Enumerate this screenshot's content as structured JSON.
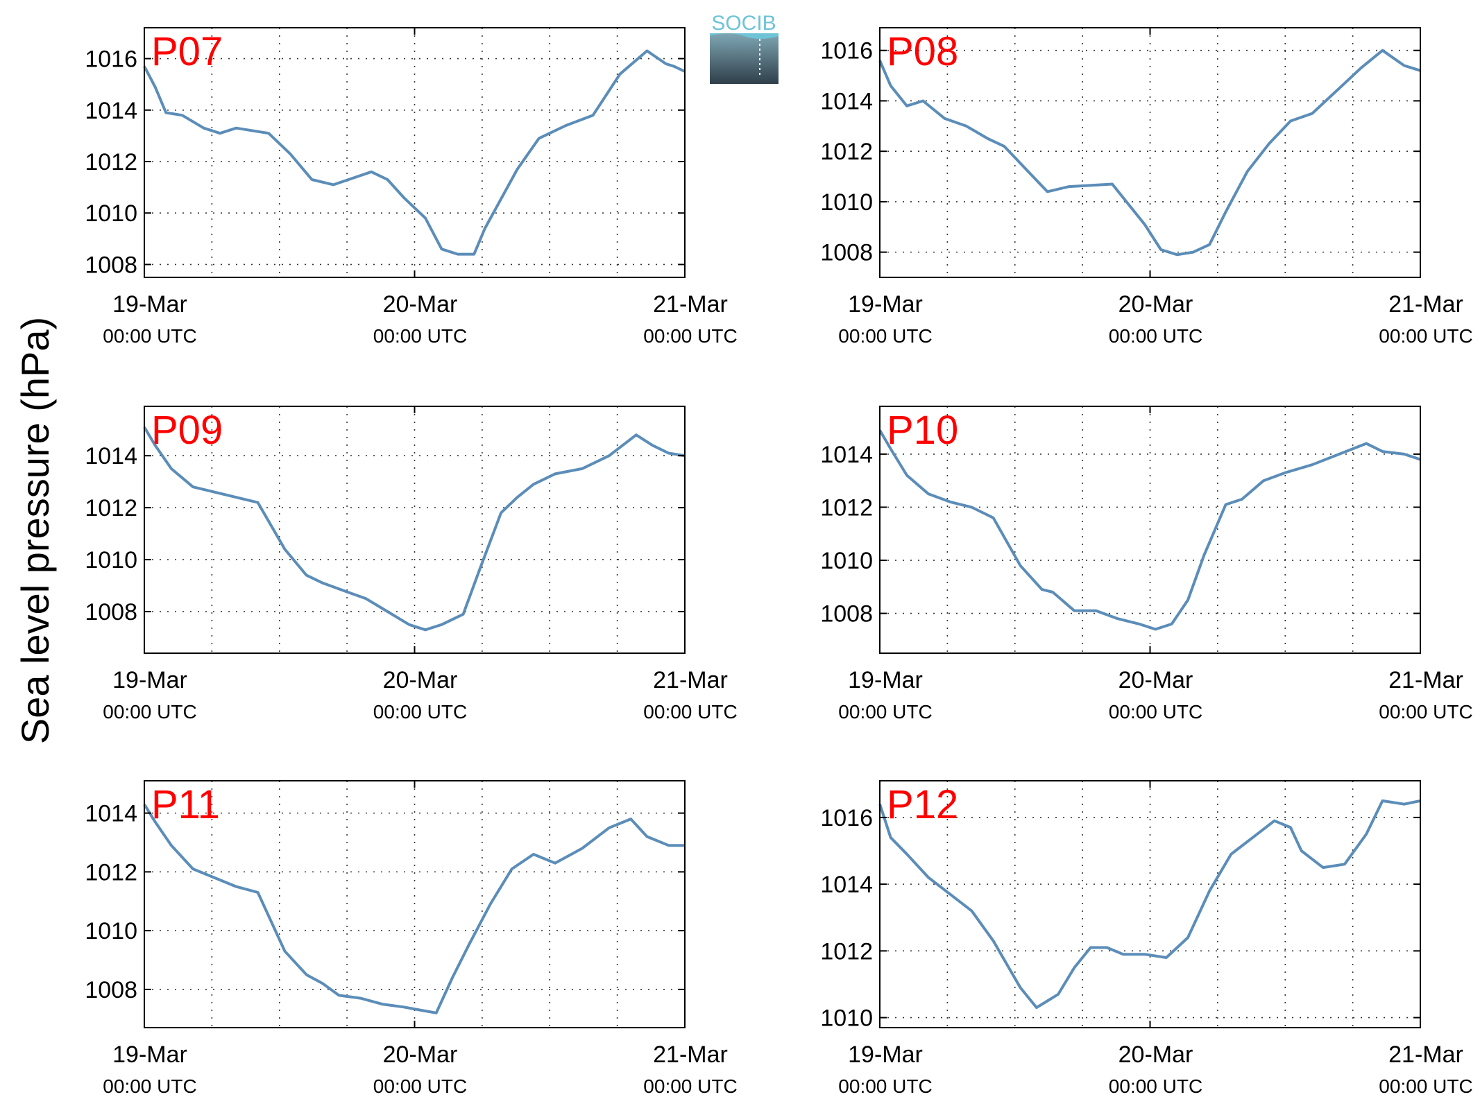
{
  "figure": {
    "ylabel": "Sea level pressure (hPa)",
    "logo_text": "SOCIB",
    "colors": {
      "line": "#5b8db8",
      "panel_label": "#ff0000",
      "axis": "#000000",
      "grid": "#333333",
      "logo_top": "#6ec3d6",
      "logo_bottom": "#2f3f4a"
    }
  },
  "chart_data": [
    {
      "type": "line",
      "panel": "P07",
      "x_ticks": [
        {
          "day": 0,
          "date": "19-Mar",
          "time": "00:00 UTC"
        },
        {
          "day": 1,
          "date": "20-Mar",
          "time": "00:00 UTC"
        },
        {
          "day": 2,
          "date": "21-Mar",
          "time": "00:00 UTC"
        }
      ],
      "xlim": [
        0,
        2
      ],
      "ylim": [
        1007.5,
        1017.2
      ],
      "yticks": [
        1008,
        1010,
        1012,
        1014,
        1016
      ],
      "grid": true,
      "series": [
        {
          "x": [
            0,
            0.04,
            0.08,
            0.14,
            0.22,
            0.28,
            0.34,
            0.46,
            0.54,
            0.62,
            0.7,
            0.84,
            0.9,
            0.96,
            1.04,
            1.1,
            1.16,
            1.22,
            1.26,
            1.38,
            1.46,
            1.56,
            1.66,
            1.76,
            1.86,
            1.93,
            1.96,
            2.0
          ],
          "y": [
            1015.7,
            1014.9,
            1013.9,
            1013.8,
            1013.3,
            1013.1,
            1013.3,
            1013.1,
            1012.3,
            1011.3,
            1011.1,
            1011.6,
            1011.3,
            1010.6,
            1009.8,
            1008.6,
            1008.4,
            1008.4,
            1009.4,
            1011.7,
            1012.9,
            1013.4,
            1013.8,
            1015.4,
            1016.3,
            1015.8,
            1015.7,
            1015.5
          ]
        }
      ]
    },
    {
      "type": "line",
      "panel": "P08",
      "x_ticks": [
        {
          "day": 0,
          "date": "19-Mar",
          "time": "00:00 UTC"
        },
        {
          "day": 1,
          "date": "20-Mar",
          "time": "00:00 UTC"
        },
        {
          "day": 2,
          "date": "21-Mar",
          "time": "00:00 UTC"
        }
      ],
      "xlim": [
        0,
        2
      ],
      "ylim": [
        1007.0,
        1016.9
      ],
      "yticks": [
        1008,
        1010,
        1012,
        1014,
        1016
      ],
      "grid": true,
      "series": [
        {
          "x": [
            0,
            0.04,
            0.1,
            0.16,
            0.24,
            0.32,
            0.4,
            0.46,
            0.54,
            0.62,
            0.7,
            0.86,
            0.92,
            0.98,
            1.04,
            1.1,
            1.16,
            1.22,
            1.28,
            1.36,
            1.44,
            1.52,
            1.6,
            1.7,
            1.78,
            1.86,
            1.94,
            2.0
          ],
          "y": [
            1015.6,
            1014.6,
            1013.8,
            1014.0,
            1013.3,
            1013.0,
            1012.5,
            1012.2,
            1011.3,
            1010.4,
            1010.6,
            1010.7,
            1009.9,
            1009.1,
            1008.1,
            1007.9,
            1008.0,
            1008.3,
            1009.6,
            1011.2,
            1012.3,
            1013.2,
            1013.5,
            1014.5,
            1015.3,
            1016.0,
            1015.4,
            1015.2
          ]
        }
      ]
    },
    {
      "type": "line",
      "panel": "P09",
      "x_ticks": [
        {
          "day": 0,
          "date": "19-Mar",
          "time": "00:00 UTC"
        },
        {
          "day": 1,
          "date": "20-Mar",
          "time": "00:00 UTC"
        },
        {
          "day": 2,
          "date": "21-Mar",
          "time": "00:00 UTC"
        }
      ],
      "xlim": [
        0,
        2
      ],
      "ylim": [
        1006.4,
        1015.9
      ],
      "yticks": [
        1008,
        1010,
        1012,
        1014
      ],
      "grid": true,
      "series": [
        {
          "x": [
            0,
            0.04,
            0.1,
            0.18,
            0.26,
            0.34,
            0.42,
            0.52,
            0.6,
            0.66,
            0.74,
            0.82,
            0.9,
            0.98,
            1.04,
            1.1,
            1.18,
            1.24,
            1.32,
            1.38,
            1.44,
            1.52,
            1.62,
            1.72,
            1.82,
            1.88,
            1.94,
            2.0
          ],
          "y": [
            1015.1,
            1014.4,
            1013.5,
            1012.8,
            1012.6,
            1012.4,
            1012.2,
            1010.4,
            1009.4,
            1009.1,
            1008.8,
            1008.5,
            1008.0,
            1007.5,
            1007.3,
            1007.5,
            1007.9,
            1009.6,
            1011.8,
            1012.4,
            1012.9,
            1013.3,
            1013.5,
            1014.0,
            1014.8,
            1014.4,
            1014.1,
            1014.0
          ]
        }
      ]
    },
    {
      "type": "line",
      "panel": "P10",
      "x_ticks": [
        {
          "day": 0,
          "date": "19-Mar",
          "time": "00:00 UTC"
        },
        {
          "day": 1,
          "date": "20-Mar",
          "time": "00:00 UTC"
        },
        {
          "day": 2,
          "date": "21-Mar",
          "time": "00:00 UTC"
        }
      ],
      "xlim": [
        0,
        2
      ],
      "ylim": [
        1006.5,
        1015.8
      ],
      "yticks": [
        1008,
        1010,
        1012,
        1014
      ],
      "grid": true,
      "series": [
        {
          "x": [
            0,
            0.04,
            0.1,
            0.18,
            0.26,
            0.34,
            0.42,
            0.52,
            0.6,
            0.64,
            0.72,
            0.8,
            0.88,
            0.96,
            1.02,
            1.08,
            1.14,
            1.2,
            1.28,
            1.34,
            1.42,
            1.5,
            1.6,
            1.7,
            1.8,
            1.86,
            1.94,
            2.0
          ],
          "y": [
            1014.9,
            1014.2,
            1013.2,
            1012.5,
            1012.2,
            1012.0,
            1011.6,
            1009.8,
            1008.9,
            1008.8,
            1008.1,
            1008.1,
            1007.8,
            1007.6,
            1007.4,
            1007.6,
            1008.5,
            1010.2,
            1012.1,
            1012.3,
            1013.0,
            1013.3,
            1013.6,
            1014.0,
            1014.4,
            1014.1,
            1014.0,
            1013.8
          ]
        }
      ]
    },
    {
      "type": "line",
      "panel": "P11",
      "x_ticks": [
        {
          "day": 0,
          "date": "19-Mar",
          "time": "00:00 UTC"
        },
        {
          "day": 1,
          "date": "20-Mar",
          "time": "00:00 UTC"
        },
        {
          "day": 2,
          "date": "21-Mar",
          "time": "00:00 UTC"
        }
      ],
      "xlim": [
        0,
        2
      ],
      "ylim": [
        1006.7,
        1015.1
      ],
      "yticks": [
        1008,
        1010,
        1012,
        1014
      ],
      "grid": true,
      "series": [
        {
          "x": [
            0,
            0.04,
            0.1,
            0.18,
            0.26,
            0.34,
            0.42,
            0.52,
            0.6,
            0.66,
            0.72,
            0.8,
            0.88,
            0.96,
            1.02,
            1.08,
            1.14,
            1.2,
            1.28,
            1.36,
            1.44,
            1.52,
            1.62,
            1.72,
            1.8,
            1.86,
            1.94,
            2.0
          ],
          "y": [
            1014.3,
            1013.7,
            1012.9,
            1012.1,
            1011.8,
            1011.5,
            1011.3,
            1009.3,
            1008.5,
            1008.2,
            1007.8,
            1007.7,
            1007.5,
            1007.4,
            1007.3,
            1007.2,
            1008.4,
            1009.5,
            1010.9,
            1012.1,
            1012.6,
            1012.3,
            1012.8,
            1013.5,
            1013.8,
            1013.2,
            1012.9,
            1012.9
          ]
        }
      ]
    },
    {
      "type": "line",
      "panel": "P12",
      "x_ticks": [
        {
          "day": 0,
          "date": "19-Mar",
          "time": "00:00 UTC"
        },
        {
          "day": 1,
          "date": "20-Mar",
          "time": "00:00 UTC"
        },
        {
          "day": 2,
          "date": "21-Mar",
          "time": "00:00 UTC"
        }
      ],
      "xlim": [
        0,
        2
      ],
      "ylim": [
        1009.7,
        1017.1
      ],
      "yticks": [
        1010,
        1012,
        1014,
        1016
      ],
      "grid": true,
      "series": [
        {
          "x": [
            0,
            0.04,
            0.1,
            0.18,
            0.26,
            0.34,
            0.42,
            0.52,
            0.58,
            0.62,
            0.66,
            0.72,
            0.78,
            0.84,
            0.9,
            0.98,
            1.06,
            1.14,
            1.22,
            1.3,
            1.38,
            1.46,
            1.52,
            1.56,
            1.64,
            1.72,
            1.8,
            1.86,
            1.94,
            2.0
          ],
          "y": [
            1016.4,
            1015.4,
            1014.9,
            1014.2,
            1013.7,
            1013.2,
            1012.3,
            1010.9,
            1010.3,
            1010.5,
            1010.7,
            1011.5,
            1012.1,
            1012.1,
            1011.9,
            1011.9,
            1011.8,
            1012.4,
            1013.8,
            1014.9,
            1015.4,
            1015.9,
            1015.7,
            1015.0,
            1014.5,
            1014.6,
            1015.5,
            1016.5,
            1016.4,
            1016.5
          ]
        }
      ]
    }
  ]
}
